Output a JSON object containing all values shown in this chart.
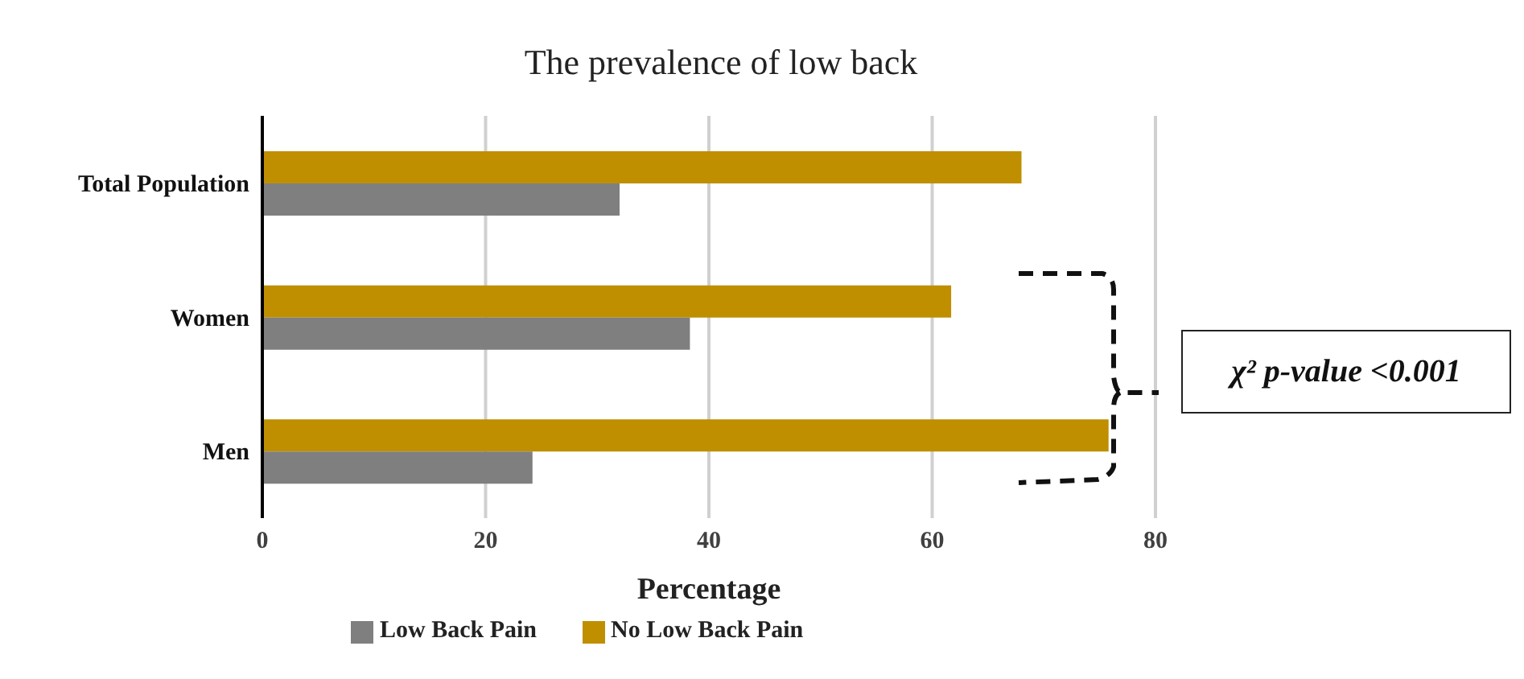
{
  "chart_data": {
    "type": "bar",
    "orientation": "horizontal",
    "title": "The prevalence of low back",
    "xlabel": "Percentage",
    "categories": [
      "Total Population",
      "Women",
      "Men"
    ],
    "series": [
      {
        "name": "No Low Back Pain",
        "color": "#bf8f00",
        "values": [
          68,
          61.7,
          75.8
        ]
      },
      {
        "name": "Low Back Pain",
        "color": "#7f7f7f",
        "values": [
          32,
          38.3,
          24.2
        ]
      }
    ],
    "xlim": [
      0,
      80
    ],
    "xticks": [
      0,
      20,
      40,
      60,
      80
    ],
    "grid": "x",
    "legend": "bottom",
    "annotations": [
      "χ² p-value <0.001"
    ]
  }
}
